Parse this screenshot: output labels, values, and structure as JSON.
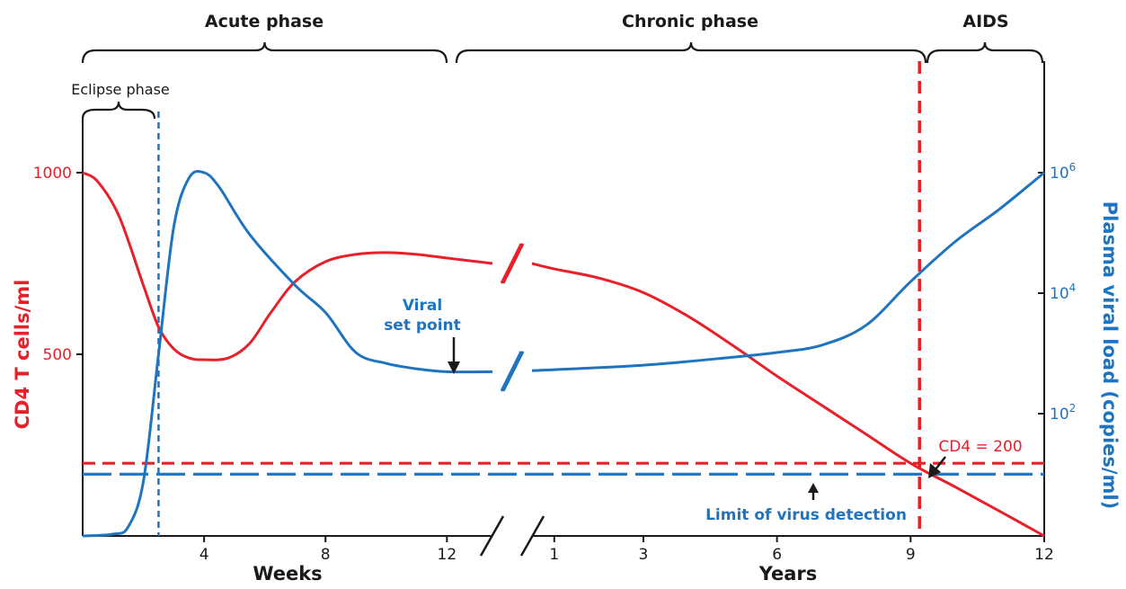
{
  "chart_data": {
    "type": "line",
    "phases": [
      "Acute phase",
      "Chronic phase",
      "AIDS"
    ],
    "eclipse_label": "Eclipse phase",
    "x_weeks": {
      "label": "Weeks",
      "ticks": [
        "4",
        "8",
        "12"
      ],
      "range": [
        0,
        13.5
      ]
    },
    "x_years": {
      "label": "Years",
      "ticks": [
        "1",
        "3",
        "6",
        "9",
        "12"
      ],
      "range": [
        0.5,
        12
      ]
    },
    "y_left": {
      "label": "CD4 T cells/ml",
      "ticks": [
        "1000",
        "500"
      ],
      "range": [
        0,
        1000
      ],
      "color": "#e8202a"
    },
    "y_right": {
      "label": "Plasma viral load (copies/ml)",
      "ticks": [
        {
          "base": "10",
          "exp": "6"
        },
        {
          "base": "10",
          "exp": "4"
        },
        {
          "base": "10",
          "exp": "2"
        }
      ],
      "scale": "log",
      "color": "#1f74c0"
    },
    "series": [
      {
        "name": "CD4",
        "color": "#e8202a",
        "weeks_segment": [
          {
            "x": 0,
            "y": 1000
          },
          {
            "x": 0.5,
            "y": 975
          },
          {
            "x": 1.2,
            "y": 880
          },
          {
            "x": 2,
            "y": 690
          },
          {
            "x": 2.5,
            "y": 575
          },
          {
            "x": 3,
            "y": 515
          },
          {
            "x": 3.5,
            "y": 490
          },
          {
            "x": 4,
            "y": 485
          },
          {
            "x": 4.8,
            "y": 490
          },
          {
            "x": 5.5,
            "y": 530
          },
          {
            "x": 6.2,
            "y": 615
          },
          {
            "x": 7,
            "y": 700
          },
          {
            "x": 8,
            "y": 755
          },
          {
            "x": 9,
            "y": 775
          },
          {
            "x": 10,
            "y": 780
          },
          {
            "x": 11,
            "y": 775
          },
          {
            "x": 12,
            "y": 765
          },
          {
            "x": 13.5,
            "y": 750
          }
        ],
        "years_segment": [
          {
            "x": 0.5,
            "y": 750
          },
          {
            "x": 1,
            "y": 735
          },
          {
            "x": 2,
            "y": 710
          },
          {
            "x": 3,
            "y": 670
          },
          {
            "x": 4,
            "y": 605
          },
          {
            "x": 5,
            "y": 525
          },
          {
            "x": 6,
            "y": 440
          },
          {
            "x": 7,
            "y": 360
          },
          {
            "x": 8,
            "y": 280
          },
          {
            "x": 9,
            "y": 200
          },
          {
            "x": 10,
            "y": 135
          },
          {
            "x": 11,
            "y": 68
          },
          {
            "x": 12,
            "y": 0
          }
        ]
      },
      {
        "name": "Viral load",
        "color": "#1f74c0",
        "weeks_segment": [
          {
            "x": 0,
            "y": 0
          },
          {
            "x": 1,
            "y": 5
          },
          {
            "x": 1.5,
            "y": 25
          },
          {
            "x": 2,
            "y": 150
          },
          {
            "x": 2.5,
            "y": 500
          },
          {
            "x": 3,
            "y": 850
          },
          {
            "x": 3.5,
            "y": 985
          },
          {
            "x": 4,
            "y": 1000
          },
          {
            "x": 4.5,
            "y": 960
          },
          {
            "x": 5.5,
            "y": 830
          },
          {
            "x": 7,
            "y": 690
          },
          {
            "x": 8,
            "y": 615
          },
          {
            "x": 9,
            "y": 505
          },
          {
            "x": 10,
            "y": 475
          },
          {
            "x": 11,
            "y": 460
          },
          {
            "x": 12,
            "y": 452
          },
          {
            "x": 13.5,
            "y": 452
          }
        ],
        "years_segment": [
          {
            "x": 0.5,
            "y": 455
          },
          {
            "x": 3,
            "y": 470
          },
          {
            "x": 5,
            "y": 492
          },
          {
            "x": 6,
            "y": 505
          },
          {
            "x": 7,
            "y": 525
          },
          {
            "x": 8,
            "y": 580
          },
          {
            "x": 9,
            "y": 700
          },
          {
            "x": 10,
            "y": 810
          },
          {
            "x": 11,
            "y": 900
          },
          {
            "x": 12,
            "y": 1000
          }
        ]
      }
    ],
    "reference_lines": {
      "cd4_200": {
        "cd4": 200,
        "color": "#e8202a"
      },
      "detection_limit": {
        "cd4": 170,
        "color": "#1f74c0"
      },
      "eclipse_end": {
        "week": 2.5,
        "color": "#1f74c0"
      },
      "aids_onset": {
        "year": 9.2,
        "color": "#e8202a"
      }
    },
    "annotations": {
      "viral_set_point": [
        "Viral",
        "set point"
      ],
      "cd4_200": "CD4 = 200",
      "detection": "Limit of virus detection"
    }
  }
}
